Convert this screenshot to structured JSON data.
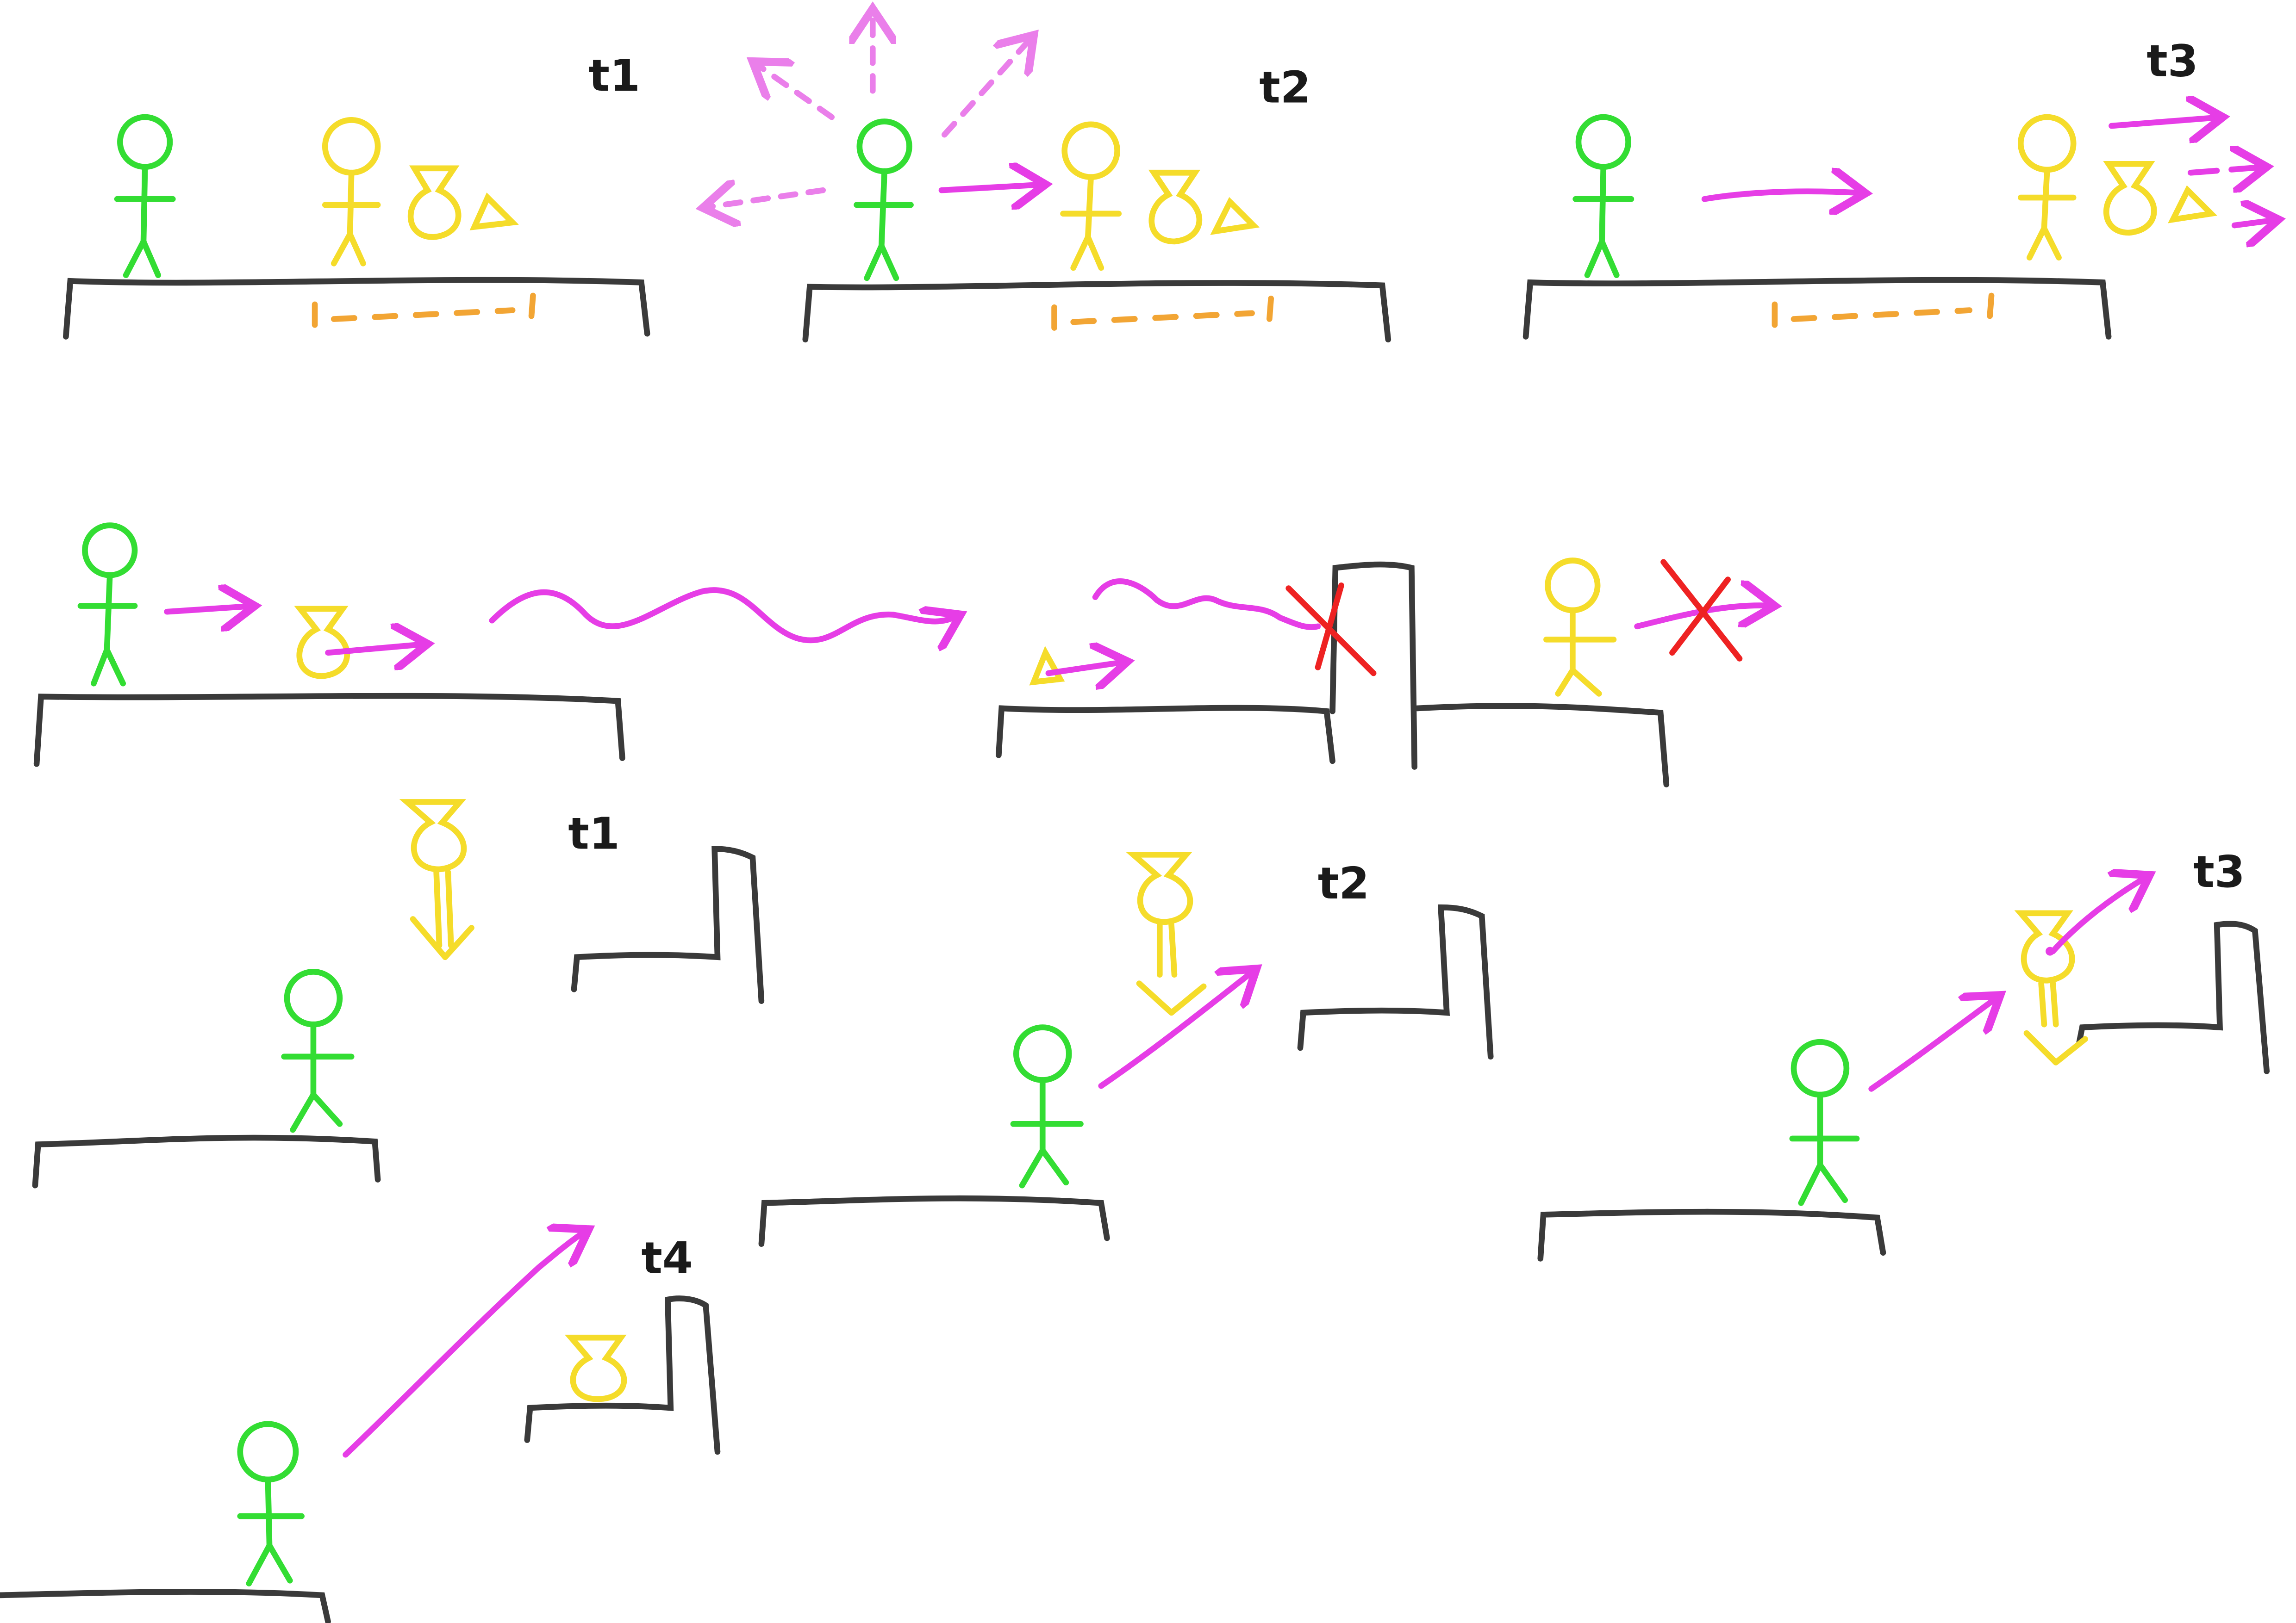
{
  "colors": {
    "ground": "#3a3a3a",
    "player": "#33dd33",
    "npc": "#f5dc2a",
    "magenta": "#e63de6",
    "orange": "#f2a534",
    "red": "#ee2222",
    "background": "#ffffff"
  },
  "labels": {
    "p1_t1": "t1",
    "p1_t2": "t2",
    "p1_t3": "t3",
    "p3_t1": "t1",
    "p3_t2": "t2",
    "p3_t3": "t3",
    "p4_t4": "t4"
  }
}
